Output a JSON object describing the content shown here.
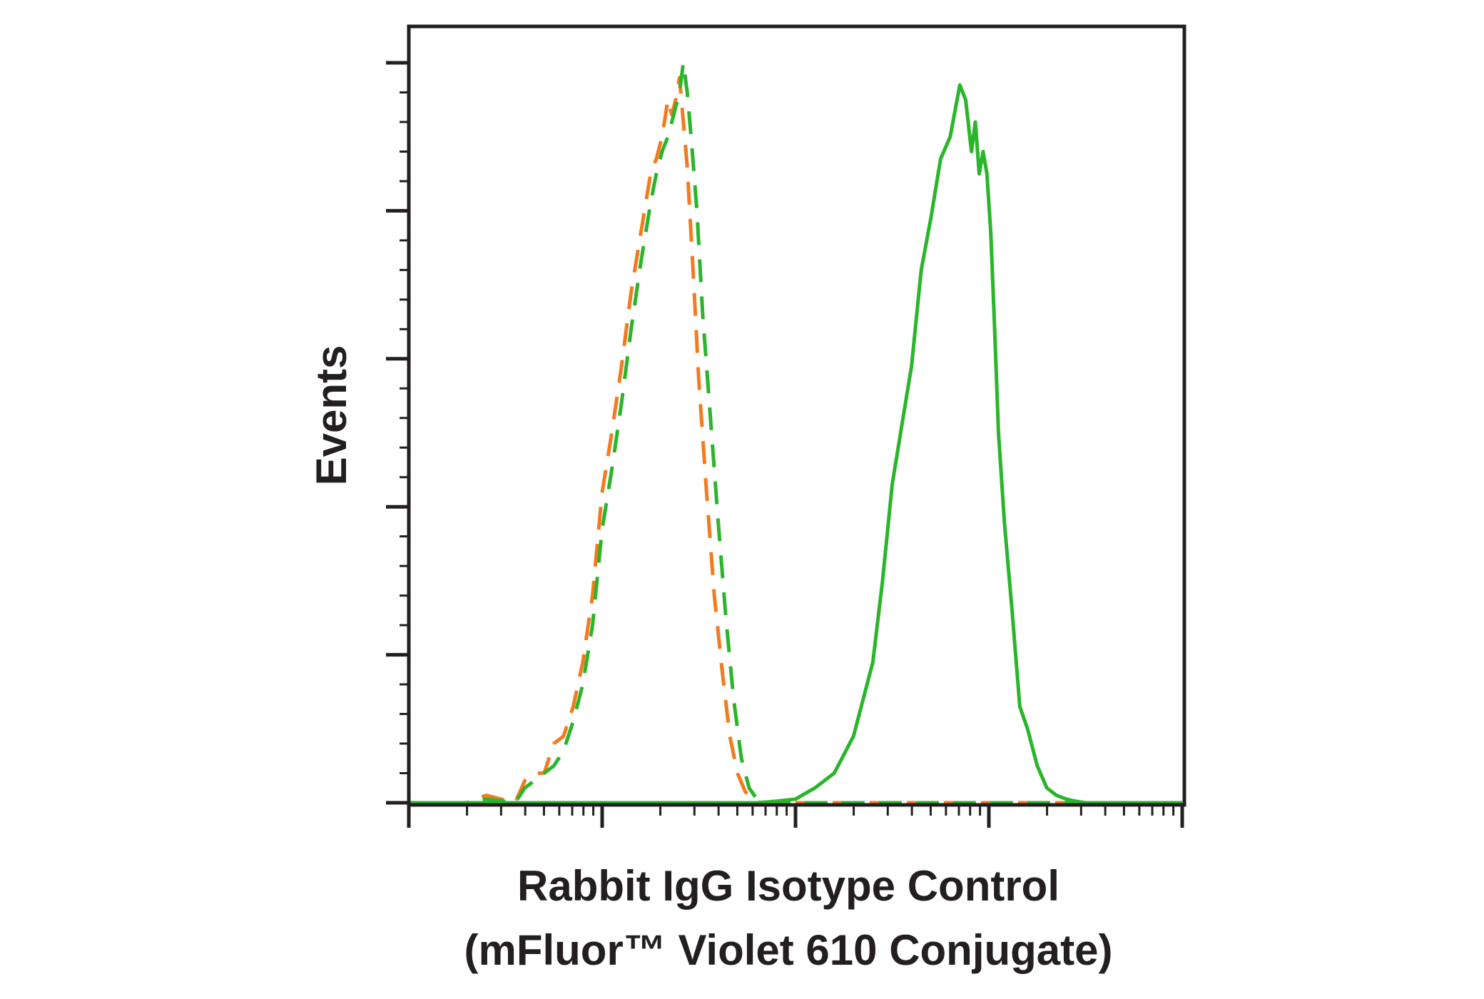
{
  "chart_data": {
    "type": "line",
    "title": "",
    "ylabel": "Events",
    "xlabel_lines": [
      "Rabbit IgG Isotype Control",
      "(mFluor™ Violet 610 Conjugate)"
    ],
    "x_scale": "log",
    "xlim": [
      0,
      4
    ],
    "ylim": [
      0,
      100
    ],
    "grid": false,
    "legend": "none",
    "x_major_ticks": [
      0,
      1,
      2,
      3,
      4
    ],
    "y_major_ticks": [
      0,
      20,
      40,
      60,
      80,
      100
    ],
    "series": [
      {
        "color": "#f47a1f",
        "dash": true,
        "x": [
          0.0,
          0.3,
          0.4,
          0.55,
          0.6,
          0.65,
          0.7,
          0.75,
          0.8,
          0.85,
          0.9,
          0.95,
          1.0,
          1.05,
          1.1,
          1.15,
          1.2,
          1.25,
          1.28,
          1.31,
          1.34,
          1.36,
          1.38,
          1.4,
          1.42,
          1.44,
          1.47,
          1.5,
          1.54,
          1.58,
          1.62,
          1.66,
          1.7,
          1.74,
          1.78,
          1.82,
          1.86,
          1.9,
          1.95,
          2.0,
          2.2,
          2.5,
          3.0,
          3.5,
          4.0
        ],
        "y": [
          0,
          0,
          1,
          0,
          3,
          4,
          4,
          8,
          9,
          13,
          19,
          28,
          42,
          50,
          59,
          69,
          77,
          85,
          87,
          90,
          95,
          93,
          95,
          98,
          92,
          86,
          72,
          57,
          42,
          28,
          18,
          9,
          4,
          1.5,
          0.5,
          0,
          0,
          0,
          0,
          0,
          0,
          0,
          0,
          0,
          0
        ]
      },
      {
        "color": "#2ab52a",
        "dash": true,
        "x": [
          0.0,
          0.3,
          0.4,
          0.55,
          0.6,
          0.65,
          0.7,
          0.75,
          0.8,
          0.85,
          0.9,
          0.95,
          1.0,
          1.05,
          1.1,
          1.15,
          1.2,
          1.25,
          1.28,
          1.31,
          1.34,
          1.37,
          1.4,
          1.42,
          1.44,
          1.46,
          1.49,
          1.52,
          1.56,
          1.6,
          1.64,
          1.68,
          1.72,
          1.76,
          1.8,
          1.84,
          1.88,
          1.92,
          1.96,
          2.0,
          2.2,
          2.5,
          3.0,
          3.5,
          4.0
        ],
        "y": [
          0,
          0,
          0.5,
          0,
          2,
          3,
          4,
          5,
          7,
          11,
          16,
          24,
          37,
          45,
          54,
          64,
          73,
          81,
          85,
          88,
          90,
          93,
          96,
          100,
          96,
          90,
          80,
          66,
          52,
          38,
          25,
          14,
          6,
          2,
          0.5,
          0,
          0,
          0,
          0,
          0,
          0,
          0,
          0,
          0,
          0
        ]
      },
      {
        "color": "#2ab52a",
        "dash": false,
        "x": [
          0.0,
          1.7,
          1.8,
          1.9,
          2.0,
          2.1,
          2.2,
          2.3,
          2.4,
          2.45,
          2.5,
          2.55,
          2.6,
          2.65,
          2.7,
          2.75,
          2.8,
          2.85,
          2.88,
          2.91,
          2.93,
          2.95,
          2.97,
          2.99,
          3.01,
          3.03,
          3.05,
          3.08,
          3.12,
          3.16,
          3.2,
          3.25,
          3.3,
          3.35,
          3.4,
          3.45,
          3.5,
          3.6,
          3.7,
          3.8,
          4.0
        ],
        "y": [
          0,
          0,
          0,
          0.2,
          0.5,
          2,
          4,
          9,
          19,
          30,
          43,
          51,
          59,
          72,
          79,
          87,
          90,
          97,
          95,
          88,
          92,
          85,
          88,
          85,
          77,
          64,
          50,
          38,
          26,
          13,
          10,
          5,
          2,
          1,
          0.5,
          0.2,
          0,
          0,
          0,
          0,
          0
        ]
      }
    ]
  }
}
